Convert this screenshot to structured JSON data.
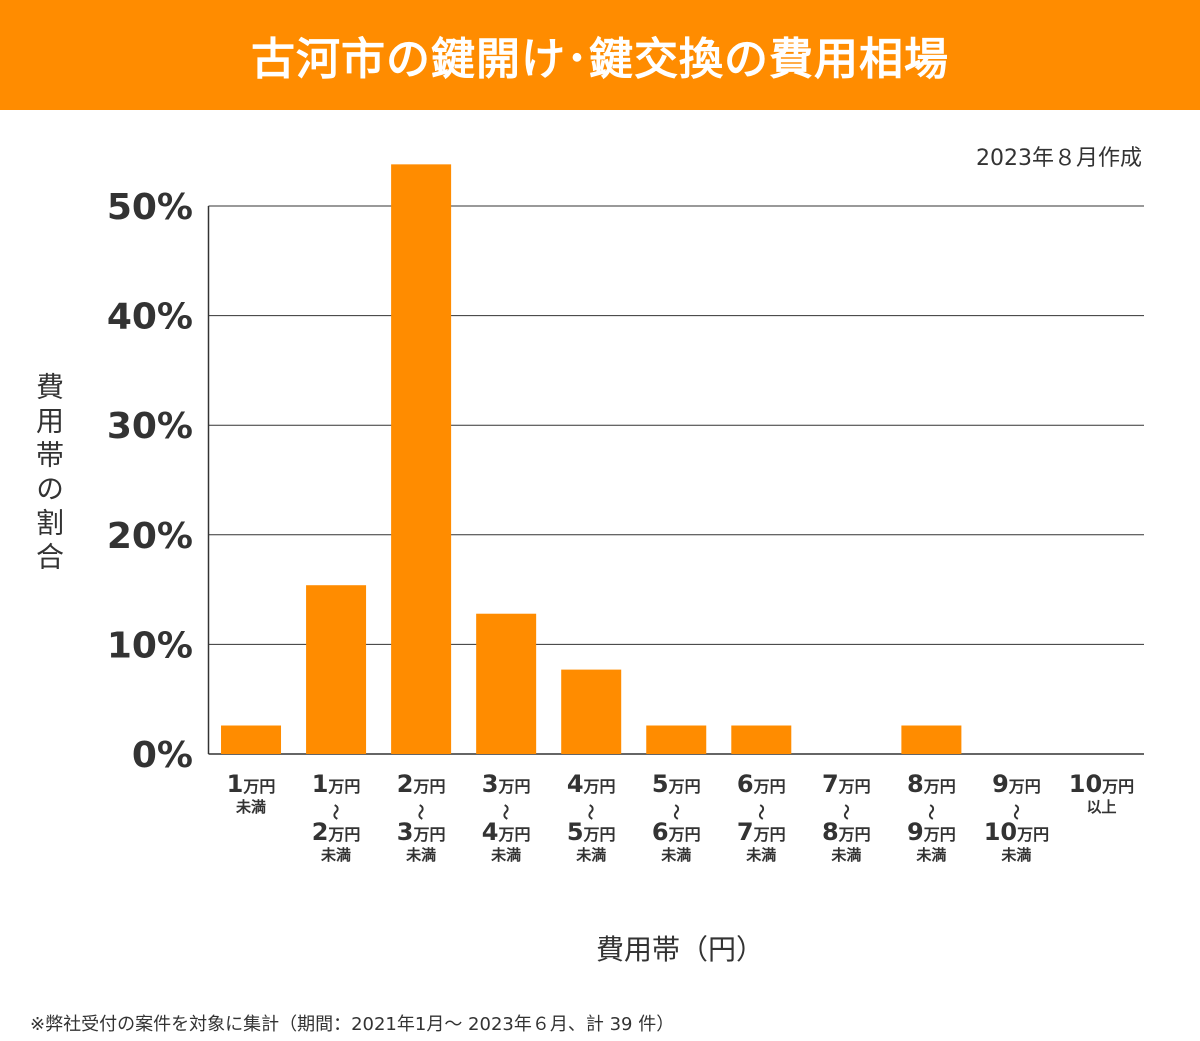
{
  "header": {
    "title": "古河市の鍵開け･鍵交換の費用相場"
  },
  "date_note": "2023年８月作成",
  "footnote": "※弊社受付の案件を対象に集計（期間：2021年1月～ 2023年６月、計 39 件）",
  "colors": {
    "bar": "#FF8C00",
    "header": "#FF8C00",
    "grid": "#333333"
  },
  "chart_data": {
    "type": "bar",
    "title": "古河市の鍵開け･鍵交換の費用相場",
    "xlabel": "費用帯（円）",
    "ylabel": "費用帯の割合",
    "ylim": [
      0,
      50
    ],
    "yticks": [
      0,
      10,
      20,
      30,
      40,
      50
    ],
    "ytick_labels": [
      "0%",
      "10%",
      "20%",
      "30%",
      "40%",
      "50%"
    ],
    "grid": true,
    "categories": [
      [
        "1万円",
        "未満"
      ],
      [
        "1万円",
        "〜",
        "2万円",
        "未満"
      ],
      [
        "2万円",
        "〜",
        "3万円",
        "未満"
      ],
      [
        "3万円",
        "〜",
        "4万円",
        "未満"
      ],
      [
        "4万円",
        "〜",
        "5万円",
        "未満"
      ],
      [
        "5万円",
        "〜",
        "6万円",
        "未満"
      ],
      [
        "6万円",
        "〜",
        "7万円",
        "未満"
      ],
      [
        "7万円",
        "〜",
        "8万円",
        "未満"
      ],
      [
        "8万円",
        "〜",
        "9万円",
        "未満"
      ],
      [
        "9万円",
        "〜",
        "10万円",
        "未満"
      ],
      [
        "10万円",
        "以上"
      ]
    ],
    "values": [
      2.6,
      15.4,
      53.8,
      12.8,
      7.7,
      2.6,
      2.6,
      0,
      2.6,
      0,
      0
    ]
  }
}
